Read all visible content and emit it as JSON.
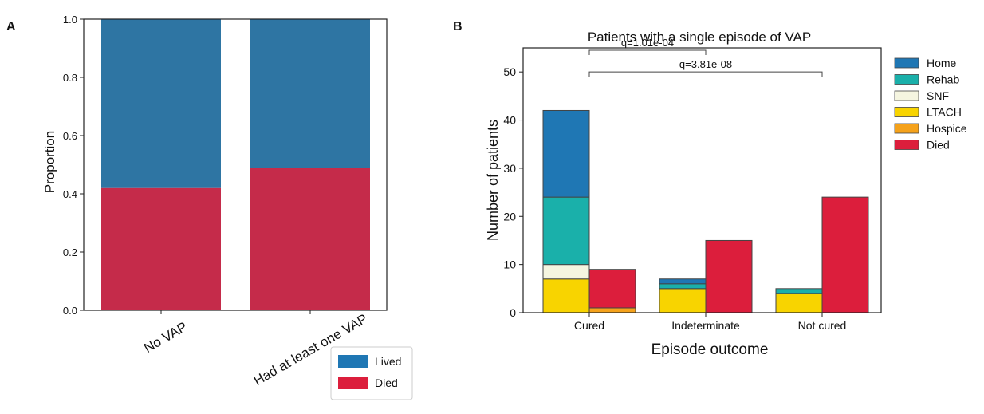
{
  "panels": {
    "a_label": "A",
    "b_label": "B"
  },
  "chart_data": [
    {
      "type": "bar",
      "stacked": true,
      "panel": "A",
      "title": "",
      "xlabel": "",
      "ylabel": "Proportion",
      "ylim": [
        0,
        1.0
      ],
      "yticks": [
        0.0,
        0.2,
        0.4,
        0.6,
        0.8,
        1.0
      ],
      "ytick_labels": [
        "0.0",
        "0.2",
        "0.4",
        "0.6",
        "0.8",
        "1.0"
      ],
      "categories": [
        "No VAP",
        "Had at least one VAP"
      ],
      "series": [
        {
          "name": "Died",
          "color": "#c52b4a",
          "values": [
            0.42,
            0.49
          ]
        },
        {
          "name": "Lived",
          "color": "#2e75a3",
          "values": [
            0.58,
            0.51
          ]
        }
      ],
      "legend": {
        "placement": "bottom-right outside",
        "entries": [
          {
            "label": "Lived",
            "color": "#1f77b4"
          },
          {
            "label": "Died",
            "color": "#dc1e3c"
          }
        ]
      },
      "grid": false
    },
    {
      "type": "bar",
      "stacked": true,
      "grouped": true,
      "panel": "B",
      "title": "Patients with a single episode of VAP",
      "xlabel": "Episode outcome",
      "ylabel": "Number of patients",
      "ylim": [
        0,
        55
      ],
      "yticks": [
        0,
        10,
        20,
        30,
        40,
        50
      ],
      "ytick_labels": [
        "0",
        "10",
        "20",
        "30",
        "40",
        "50"
      ],
      "categories": [
        "Cured",
        "Indeterminate",
        "Not cured"
      ],
      "stack_order": [
        "LTACH",
        "Hospice",
        "SNF",
        "Rehab",
        "Home",
        "Died"
      ],
      "colors": {
        "Home": "#1f77b4",
        "Rehab": "#1ab0aa",
        "SNF": "#f5f5e0",
        "LTACH": "#f8d400",
        "Hospice": "#f5a21b",
        "Died": "#dc1e3c"
      },
      "bars": [
        {
          "category": "Cured",
          "group": "Lived",
          "values": {
            "LTACH": 7,
            "Hospice": 0,
            "SNF": 3,
            "Rehab": 14,
            "Home": 18,
            "Died": 0
          }
        },
        {
          "category": "Cured",
          "group": "Died",
          "values": {
            "LTACH": 0,
            "Hospice": 1,
            "SNF": 0,
            "Rehab": 0,
            "Home": 0,
            "Died": 8
          }
        },
        {
          "category": "Indeterminate",
          "group": "Lived",
          "values": {
            "LTACH": 5,
            "Hospice": 0,
            "SNF": 0,
            "Rehab": 1,
            "Home": 1,
            "Died": 0
          }
        },
        {
          "category": "Indeterminate",
          "group": "Died",
          "values": {
            "LTACH": 0,
            "Hospice": 0,
            "SNF": 0,
            "Rehab": 0,
            "Home": 0,
            "Died": 15
          }
        },
        {
          "category": "Not cured",
          "group": "Lived",
          "values": {
            "LTACH": 4,
            "Hospice": 0,
            "SNF": 0,
            "Rehab": 1,
            "Home": 0,
            "Died": 0
          }
        },
        {
          "category": "Not cured",
          "group": "Died",
          "values": {
            "LTACH": 0,
            "Hospice": 0,
            "SNF": 0,
            "Rehab": 0,
            "Home": 0,
            "Died": 24
          }
        }
      ],
      "annotations": [
        {
          "text": "q=1.01e-04",
          "from": "Cured",
          "to": "Indeterminate",
          "level": 54.5
        },
        {
          "text": "q=3.81e-08",
          "from": "Cured",
          "to": "Not cured",
          "level": 50
        }
      ],
      "legend": {
        "placement": "right outside",
        "entries": [
          "Home",
          "Rehab",
          "SNF",
          "LTACH",
          "Hospice",
          "Died"
        ]
      },
      "grid": false
    }
  ]
}
